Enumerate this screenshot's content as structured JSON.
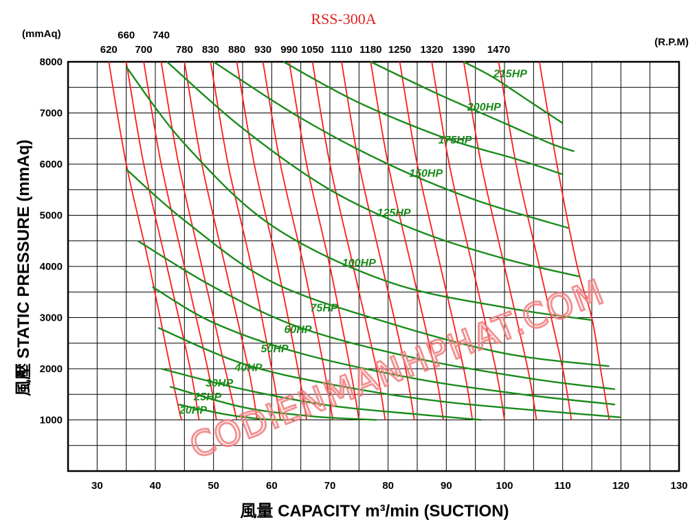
{
  "chart_data": {
    "type": "line",
    "title": "RSS-300A",
    "xlabel": "風量 CAPACITY m³/min (SUCTION)",
    "ylabel": "風壓 STATIC PRESSURE (mmAq)",
    "y_unit": "(mmAq)",
    "rpm_unit": "(R.P.M)",
    "xlim": [
      25,
      130
    ],
    "ylim": [
      0,
      8000
    ],
    "x_ticks": [
      30,
      40,
      50,
      60,
      70,
      80,
      90,
      100,
      110,
      120,
      130
    ],
    "y_ticks": [
      1000,
      2000,
      3000,
      4000,
      5000,
      6000,
      7000,
      8000
    ],
    "grid": true,
    "colors": {
      "rpm": "#ff1a1a",
      "hp": "#1a8a1a",
      "grid": "#000000"
    },
    "rpm_curves": [
      {
        "label": "620",
        "points": [
          [
            32.0,
            8000
          ],
          [
            35.0,
            6000
          ],
          [
            39.0,
            4000
          ],
          [
            43.5,
            1500
          ],
          [
            44.5,
            1000
          ]
        ]
      },
      {
        "label": "660",
        "points": [
          [
            35.0,
            8000
          ],
          [
            38.0,
            6000
          ],
          [
            42.0,
            4000
          ],
          [
            46.0,
            2000
          ],
          [
            47.5,
            1000
          ]
        ]
      },
      {
        "label": "700",
        "points": [
          [
            38.0,
            8000
          ],
          [
            41.0,
            6000
          ],
          [
            45.0,
            4000
          ],
          [
            49.0,
            2000
          ],
          [
            50.5,
            1000
          ]
        ]
      },
      {
        "label": "740",
        "points": [
          [
            41.0,
            8000
          ],
          [
            44.0,
            6000
          ],
          [
            48.0,
            4000
          ],
          [
            52.0,
            2000
          ],
          [
            54.0,
            1000
          ]
        ]
      },
      {
        "label": "780",
        "points": [
          [
            45.0,
            8000
          ],
          [
            48.0,
            6000
          ],
          [
            52.0,
            4000
          ],
          [
            56.0,
            2000
          ],
          [
            57.5,
            1000
          ]
        ]
      },
      {
        "label": "830",
        "points": [
          [
            49.5,
            8000
          ],
          [
            52.5,
            6000
          ],
          [
            56.5,
            4000
          ],
          [
            60.0,
            2000
          ],
          [
            61.5,
            1000
          ]
        ]
      },
      {
        "label": "880",
        "points": [
          [
            54.0,
            8000
          ],
          [
            57.0,
            6000
          ],
          [
            61.0,
            4000
          ],
          [
            64.5,
            2000
          ],
          [
            66.0,
            1000
          ]
        ]
      },
      {
        "label": "930",
        "points": [
          [
            58.5,
            8000
          ],
          [
            61.5,
            6000
          ],
          [
            65.5,
            4000
          ],
          [
            69.0,
            2000
          ],
          [
            70.5,
            1000
          ]
        ]
      },
      {
        "label": "990",
        "points": [
          [
            63.0,
            8000
          ],
          [
            66.0,
            6000
          ],
          [
            70.0,
            4000
          ],
          [
            73.5,
            2000
          ],
          [
            75.0,
            1000
          ]
        ]
      },
      {
        "label": "1050",
        "points": [
          [
            67.0,
            8000
          ],
          [
            70.0,
            6000
          ],
          [
            74.0,
            4000
          ],
          [
            78.0,
            2000
          ],
          [
            79.5,
            1000
          ]
        ]
      },
      {
        "label": "1110",
        "points": [
          [
            72.0,
            8000
          ],
          [
            75.0,
            6000
          ],
          [
            79.0,
            4000
          ],
          [
            83.0,
            2000
          ],
          [
            84.5,
            1000
          ]
        ]
      },
      {
        "label": "1180",
        "points": [
          [
            77.0,
            8000
          ],
          [
            80.0,
            6000
          ],
          [
            84.0,
            4000
          ],
          [
            88.0,
            2000
          ],
          [
            89.5,
            1000
          ]
        ]
      },
      {
        "label": "1250",
        "points": [
          [
            82.0,
            8000
          ],
          [
            85.0,
            6000
          ],
          [
            89.0,
            4000
          ],
          [
            93.0,
            2000
          ],
          [
            94.5,
            1000
          ]
        ]
      },
      {
        "label": "1320",
        "points": [
          [
            87.5,
            8000
          ],
          [
            90.5,
            6000
          ],
          [
            94.5,
            4000
          ],
          [
            98.5,
            2000
          ],
          [
            100.0,
            1000
          ]
        ]
      },
      {
        "label": "1390",
        "points": [
          [
            93.0,
            8000
          ],
          [
            96.0,
            6000
          ],
          [
            100.0,
            4000
          ],
          [
            104.0,
            2000
          ],
          [
            105.5,
            1000
          ]
        ]
      },
      {
        "label": "1470",
        "points": [
          [
            99.0,
            8000
          ],
          [
            102.0,
            6000
          ],
          [
            106.0,
            4000
          ],
          [
            110.0,
            2000
          ],
          [
            111.5,
            1000
          ]
        ]
      },
      {
        "label": "",
        "points": [
          [
            106.0,
            8000
          ],
          [
            109.0,
            6000
          ],
          [
            112.5,
            4000
          ],
          [
            115.0,
            3000
          ],
          [
            116.5,
            2000
          ],
          [
            118.0,
            1000
          ]
        ]
      }
    ],
    "hp_curves": [
      {
        "label": "20HP",
        "label_at": [
          46.5,
          1120
        ],
        "points": [
          [
            44.0,
            1300
          ],
          [
            52.0,
            1110
          ],
          [
            58.0,
            1020
          ],
          [
            62.0,
            1000
          ]
        ]
      },
      {
        "label": "25HP",
        "label_at": [
          49.0,
          1380
        ],
        "points": [
          [
            42.5,
            1650
          ],
          [
            55.0,
            1250
          ],
          [
            67.0,
            1070
          ],
          [
            78.0,
            1000
          ]
        ]
      },
      {
        "label": "30HP",
        "label_at": [
          51.0,
          1650
        ],
        "points": [
          [
            41.0,
            2000
          ],
          [
            55.0,
            1600
          ],
          [
            70.0,
            1280
          ],
          [
            85.0,
            1110
          ],
          [
            96.0,
            1000
          ]
        ]
      },
      {
        "label": "40HP",
        "label_at": [
          56.0,
          1950
        ],
        "points": [
          [
            40.5,
            2800
          ],
          [
            55.0,
            2100
          ],
          [
            70.0,
            1700
          ],
          [
            90.0,
            1350
          ],
          [
            120.0,
            1050
          ]
        ]
      },
      {
        "label": "50HP",
        "label_at": [
          60.5,
          2320
        ],
        "points": [
          [
            39.5,
            3600
          ],
          [
            50.0,
            2900
          ],
          [
            65.0,
            2300
          ],
          [
            85.0,
            1800
          ],
          [
            103.0,
            1500
          ],
          [
            119.0,
            1300
          ]
        ]
      },
      {
        "label": "60HP",
        "label_at": [
          64.5,
          2700
        ],
        "points": [
          [
            37.0,
            4500
          ],
          [
            50.0,
            3600
          ],
          [
            65.0,
            2800
          ],
          [
            85.0,
            2200
          ],
          [
            105.0,
            1800
          ],
          [
            119.0,
            1600
          ]
        ]
      },
      {
        "label": "75HP",
        "label_at": [
          69.0,
          3120
        ],
        "points": [
          [
            35.0,
            5900
          ],
          [
            45.0,
            4900
          ],
          [
            60.0,
            3700
          ],
          [
            80.0,
            2900
          ],
          [
            100.0,
            2300
          ],
          [
            118.0,
            2050
          ]
        ]
      },
      {
        "label": "100HP",
        "label_at": [
          75.0,
          4000
        ],
        "points": [
          [
            35.0,
            7900
          ],
          [
            45.0,
            6400
          ],
          [
            60.0,
            4800
          ],
          [
            80.0,
            3700
          ],
          [
            100.0,
            3200
          ],
          [
            115.0,
            2950
          ]
        ]
      },
      {
        "label": "125HP",
        "label_at": [
          81.0,
          4980
        ],
        "points": [
          [
            42.0,
            8000
          ],
          [
            55.0,
            6700
          ],
          [
            70.0,
            5500
          ],
          [
            85.0,
            4700
          ],
          [
            100.0,
            4150
          ],
          [
            113.0,
            3800
          ]
        ]
      },
      {
        "label": "150HP",
        "label_at": [
          86.5,
          5750
        ],
        "points": [
          [
            50.0,
            8000
          ],
          [
            65.0,
            6900
          ],
          [
            80.0,
            6000
          ],
          [
            95.0,
            5300
          ],
          [
            111.0,
            4750
          ]
        ]
      },
      {
        "label": "175HP",
        "label_at": [
          91.5,
          6400
        ],
        "points": [
          [
            62.0,
            8000
          ],
          [
            75.0,
            7200
          ],
          [
            90.0,
            6500
          ],
          [
            102.0,
            6100
          ],
          [
            110.0,
            5800
          ]
        ]
      },
      {
        "label": "200HP",
        "label_at": [
          96.5,
          7050
        ],
        "points": [
          [
            77.0,
            8000
          ],
          [
            88.0,
            7400
          ],
          [
            100.0,
            6800
          ],
          [
            108.0,
            6400
          ],
          [
            112.0,
            6250
          ]
        ]
      },
      {
        "label": "215HP",
        "label_at": [
          101.0,
          7700
        ],
        "points": [
          [
            93.0,
            8000
          ],
          [
            98.0,
            7700
          ],
          [
            104.0,
            7250
          ],
          [
            110.0,
            6800
          ]
        ]
      }
    ],
    "watermark": "CODIENMANHPHAT.COM"
  }
}
